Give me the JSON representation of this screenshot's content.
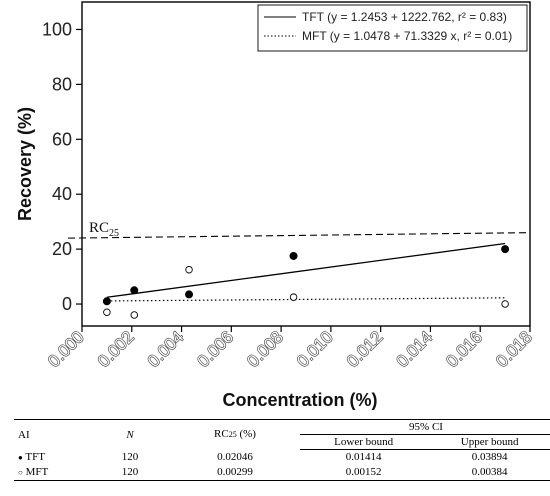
{
  "chart_data": {
    "type": "scatter",
    "xlabel": "Concentration (%)",
    "ylabel": "Recovery (%)",
    "xlim": [
      0.0,
      0.018
    ],
    "ylim": [
      -8,
      110
    ],
    "x_ticks": [
      "0.000",
      "0.002",
      "0.004",
      "0.006",
      "0.008",
      "0.010",
      "0.012",
      "0.014",
      "0.016",
      "0.018"
    ],
    "y_ticks": [
      "0",
      "20",
      "40",
      "60",
      "80",
      "100"
    ],
    "grid": false,
    "legend_position": "top-right",
    "legend": [
      {
        "style": "solid",
        "label": "TFT (y = 1.2453 + 1222.762, r² = 0.83)"
      },
      {
        "style": "dotted",
        "label": "MFT (y = 1.0478 + 71.3329 x, r² = 0.01)"
      }
    ],
    "series": [
      {
        "name": "TFT",
        "marker": "filled-circle",
        "points": [
          [
            0.001,
            1.0
          ],
          [
            0.0021,
            5.0
          ],
          [
            0.0043,
            3.5
          ],
          [
            0.0085,
            17.5
          ],
          [
            0.017,
            20.0
          ]
        ],
        "fit": {
          "intercept": 1.2453,
          "slope": 1222.762,
          "x_range": [
            0.001,
            0.017
          ]
        }
      },
      {
        "name": "MFT",
        "marker": "open-circle",
        "points": [
          [
            0.001,
            -3.0
          ],
          [
            0.0021,
            -4.0
          ],
          [
            0.0043,
            12.5
          ],
          [
            0.0085,
            2.5
          ],
          [
            0.017,
            0.0
          ]
        ],
        "fit": {
          "intercept": 1.0478,
          "slope": 71.3329,
          "x_range": [
            0.001,
            0.017
          ]
        }
      }
    ],
    "reference_line": {
      "label_main": "RC",
      "label_sub": "25",
      "y_start": 24,
      "y_end": 26,
      "style": "dashed"
    }
  },
  "table": {
    "headers": {
      "ai": "AI",
      "n": "N",
      "rc_main": "RC",
      "rc_sub": "25",
      "rc_unit": " (%)",
      "ci": "95% CI",
      "lower": "Lower bound",
      "upper": "Upper bound"
    },
    "rows": [
      {
        "symbol": "●",
        "ai": "TFT",
        "n": "120",
        "rc25": "0.02046",
        "lower": "0.01414",
        "upper": "0.03894"
      },
      {
        "symbol": "○",
        "ai": "MFT",
        "n": "120",
        "rc25": "0.00299",
        "lower": "0.00152",
        "upper": "0.00384"
      }
    ]
  }
}
